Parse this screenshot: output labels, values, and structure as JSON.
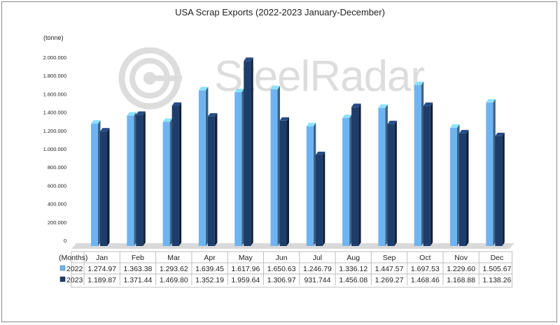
{
  "chart_data": {
    "type": "bar",
    "title": "USA Scrap Exports (2022-2023 January-December)",
    "ylabel": "(tonne)",
    "table_header": "(Months)",
    "ylim": [
      0,
      2000000
    ],
    "yticks": [
      "0",
      "200.000",
      "400.000",
      "600.000",
      "800.000",
      "1.000.000",
      "1.200.000",
      "1.400.000",
      "1.600.000",
      "1.800.000",
      "2.000.000"
    ],
    "categories": [
      "Jan",
      "Feb",
      "Mar",
      "Apr",
      "May",
      "Jun",
      "Jul",
      "Aug",
      "Sep",
      "Oct",
      "Nov",
      "Dec"
    ],
    "series": [
      {
        "name": "2022",
        "color": "#6fb4f2",
        "values": [
          1274970,
          1363380,
          1293620,
          1639450,
          1617960,
          1650630,
          1246790,
          1336120,
          1447570,
          1697530,
          1229600,
          1505670
        ],
        "labels": [
          "1.274.97",
          "1.363.38",
          "1.293.62",
          "1.639.45",
          "1.617.96",
          "1.650.63",
          "1.246.79",
          "1.336.12",
          "1.447.57",
          "1.697.53",
          "1.229.60",
          "1.505.67"
        ]
      },
      {
        "name": "2023",
        "color": "#1f3d6b",
        "values": [
          1189870,
          1371440,
          1469800,
          1352190,
          1959640,
          1306970,
          931744,
          1456080,
          1269270,
          1468460,
          1168880,
          1138260
        ],
        "labels": [
          "1.189.87",
          "1.371.44",
          "1.469.80",
          "1.352.19",
          "1.959.64",
          "1.306.97",
          "931.744",
          "1.456.08",
          "1.269.27",
          "1.468.46",
          "1.168.88",
          "1.138.26"
        ]
      }
    ],
    "grid": false,
    "legend": "data-table"
  },
  "watermark": {
    "text": "SteelRadar"
  }
}
